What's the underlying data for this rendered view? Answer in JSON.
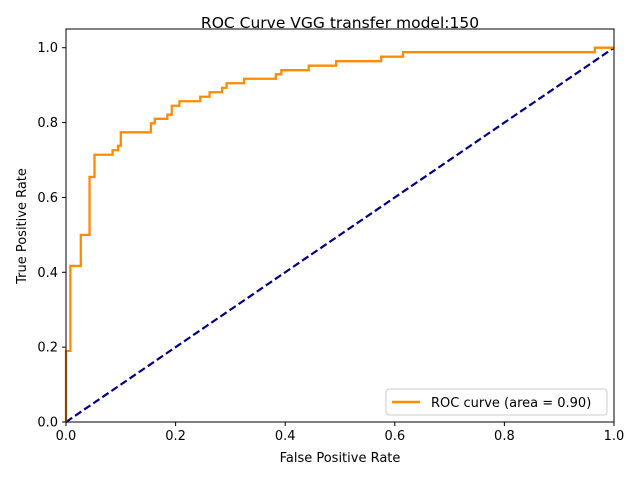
{
  "chart_data": {
    "type": "line",
    "title": "ROC Curve VGG transfer model:150",
    "xlabel": "False Positive Rate",
    "ylabel": "True Positive Rate",
    "xlim": [
      0,
      1
    ],
    "ylim": [
      0,
      1.05
    ],
    "x_ticks": [
      "0.0",
      "0.2",
      "0.4",
      "0.6",
      "0.8",
      "1.0"
    ],
    "y_ticks": [
      "0.0",
      "0.2",
      "0.4",
      "0.6",
      "0.8",
      "1.0"
    ],
    "grid": false,
    "legend_position": "lower-right",
    "series": [
      {
        "name": "ROC curve (area = 0.90)",
        "color": "#ff8c00",
        "x": [
          0.0,
          0.0,
          0.008,
          0.008,
          0.027,
          0.027,
          0.043,
          0.043,
          0.052,
          0.052,
          0.085,
          0.085,
          0.095,
          0.095,
          0.1,
          0.1,
          0.155,
          0.155,
          0.162,
          0.162,
          0.185,
          0.185,
          0.193,
          0.193,
          0.207,
          0.207,
          0.245,
          0.245,
          0.262,
          0.262,
          0.285,
          0.285,
          0.293,
          0.293,
          0.325,
          0.325,
          0.383,
          0.383,
          0.393,
          0.393,
          0.443,
          0.443,
          0.493,
          0.493,
          0.575,
          0.575,
          0.615,
          0.615,
          0.965,
          0.965,
          1.0
        ],
        "y": [
          0.0,
          0.19,
          0.19,
          0.417,
          0.417,
          0.5,
          0.5,
          0.655,
          0.655,
          0.714,
          0.714,
          0.726,
          0.726,
          0.738,
          0.738,
          0.774,
          0.774,
          0.798,
          0.798,
          0.81,
          0.81,
          0.821,
          0.821,
          0.845,
          0.845,
          0.857,
          0.857,
          0.869,
          0.869,
          0.881,
          0.881,
          0.893,
          0.893,
          0.905,
          0.905,
          0.917,
          0.917,
          0.929,
          0.929,
          0.94,
          0.94,
          0.952,
          0.952,
          0.964,
          0.964,
          0.976,
          0.976,
          0.988,
          0.988,
          1.0,
          1.0
        ]
      },
      {
        "name": "",
        "color": "#000080",
        "dashed": true,
        "x": [
          0,
          1
        ],
        "y": [
          0,
          1
        ]
      }
    ]
  }
}
